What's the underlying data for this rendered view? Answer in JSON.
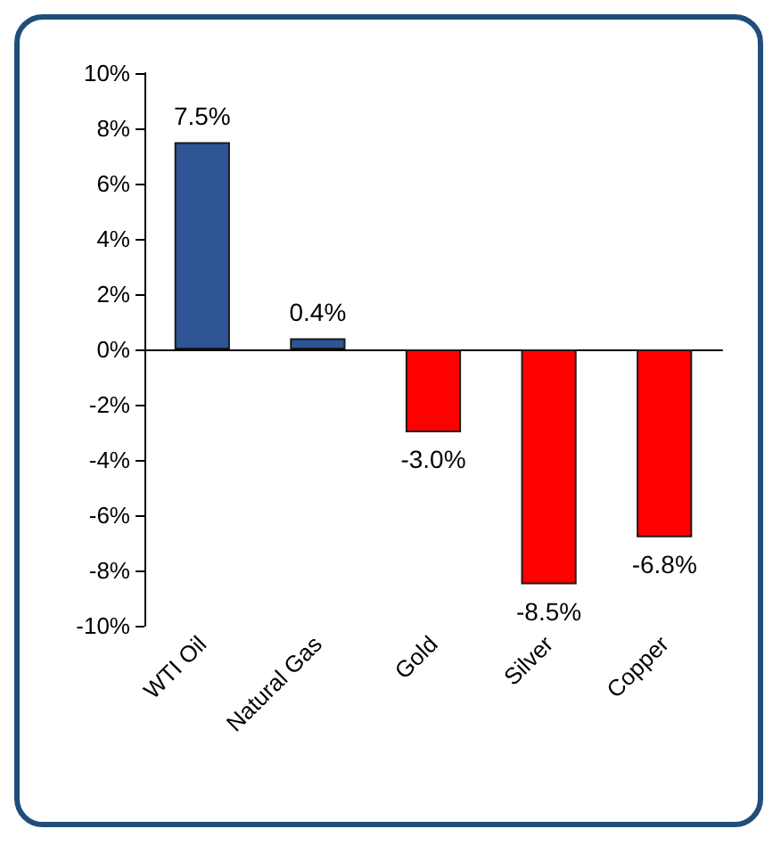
{
  "chart_data": {
    "type": "bar",
    "categories": [
      "WTI Oil",
      "Natural Gas",
      "Gold",
      "Silver",
      "Copper"
    ],
    "values": [
      7.5,
      0.4,
      -3.0,
      -8.5,
      -6.8
    ],
    "colors": [
      "#2f5597",
      "#2f5597",
      "#ff0000",
      "#ff0000",
      "#ff0000"
    ],
    "value_labels": [
      "7.5%",
      "0.4%",
      "-3.0%",
      "-8.5%",
      "-6.8%"
    ],
    "ylim": [
      -10,
      10
    ],
    "yticks": [
      {
        "value": -10,
        "label": "-10%"
      },
      {
        "value": -8,
        "label": "-8%"
      },
      {
        "value": -6,
        "label": "-6%"
      },
      {
        "value": -4,
        "label": "-4%"
      },
      {
        "value": -2,
        "label": "-2%"
      },
      {
        "value": 0,
        "label": "0%"
      },
      {
        "value": 2,
        "label": "2%"
      },
      {
        "value": 4,
        "label": "4%"
      },
      {
        "value": 6,
        "label": "6%"
      },
      {
        "value": 8,
        "label": "8%"
      },
      {
        "value": 10,
        "label": "10%"
      }
    ]
  }
}
